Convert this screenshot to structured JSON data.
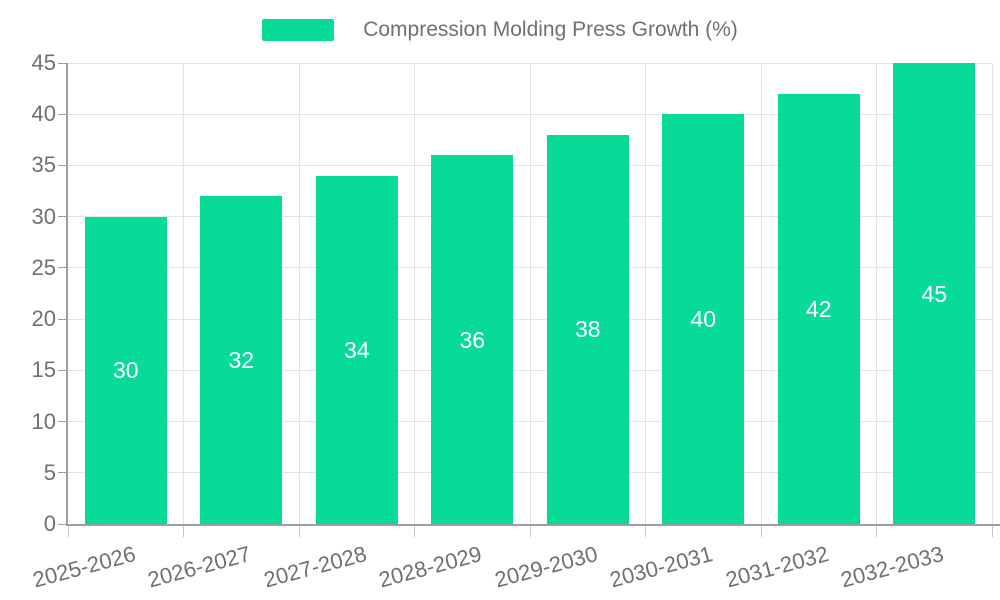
{
  "chart_data": {
    "type": "bar",
    "title": "Compression Molding Press Growth (%)",
    "legend_label": "Compression Molding Press Growth (%)",
    "legend_position": "top-center",
    "categories": [
      "2025-2026",
      "2026-2027",
      "2027-2028",
      "2028-2029",
      "2029-2030",
      "2030-2031",
      "2031-2032",
      "2032-2033"
    ],
    "series": [
      {
        "name": "Compression Molding Press Growth (%)",
        "values": [
          30,
          32,
          34,
          36,
          38,
          40,
          42,
          45
        ]
      }
    ],
    "value_labels_shown": true,
    "xlabel": "",
    "ylabel": "",
    "ylim": [
      0,
      45
    ],
    "yticks": [
      0,
      5,
      10,
      15,
      20,
      25,
      30,
      35,
      40,
      45
    ],
    "grid": true,
    "x_label_rotation_deg": -15,
    "colors": {
      "bar": "#07db97",
      "value_label": "#ffffff",
      "axis_text": "#707070",
      "axis_line": "#9e9e9e",
      "grid_line": "#e4e4e4",
      "background": "#ffffff"
    }
  }
}
